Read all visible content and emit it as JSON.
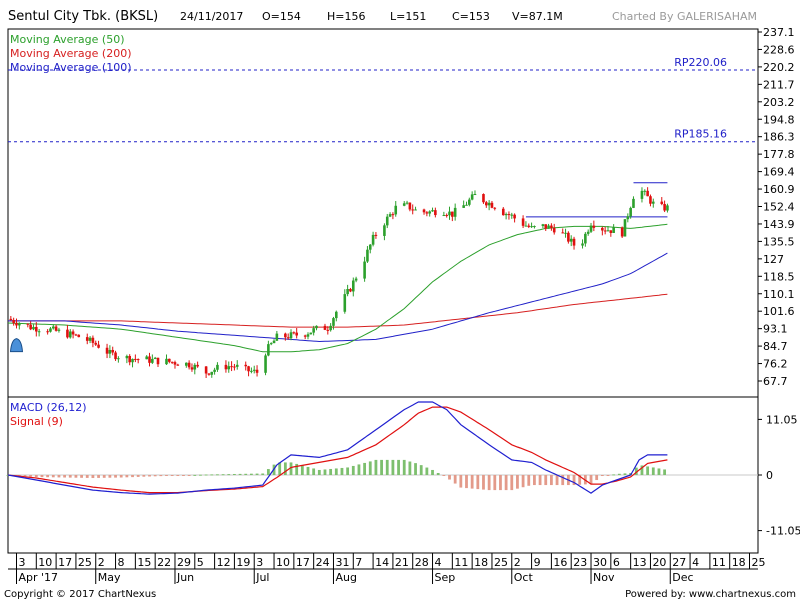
{
  "header": {
    "title": "Sentul City Tbk. (BKSL)",
    "date": "24/11/2017",
    "open": "O=154",
    "high": "H=156",
    "low": "L=151",
    "close": "C=153",
    "volume": "V=87.1M",
    "charted_by": "Charted By GALERISAHAM"
  },
  "footer": {
    "copyright": "Copyright © 2017 ChartNexus",
    "powered": "Powered by: www.chartnexus.com"
  },
  "colors": {
    "up": "#2ca02c",
    "down": "#e01010",
    "ma50": "#2ca02c",
    "ma200": "#d62020",
    "ma100": "#2020c8",
    "resistance": "#2020c8",
    "macd": "#1f1fd0",
    "signal": "#e01010"
  },
  "chart_data": [
    {
      "type": "candlestick",
      "legend": [
        {
          "name": "Moving Average (50)",
          "color": "#2ca02c"
        },
        {
          "name": "Moving Average (200)",
          "color": "#d62020"
        },
        {
          "name": "Moving Average (100)",
          "color": "#2020c8"
        }
      ],
      "y_ticks": [
        "237.1",
        "228.6",
        "220.2",
        "211.7",
        "203.2",
        "194.8",
        "186.3",
        "177.8",
        "169.4",
        "160.9",
        "152.4",
        "143.9",
        "135.5",
        "127",
        "118.5",
        "110.1",
        "101.6",
        "93.1",
        "84.7",
        "76.2",
        "67.7"
      ],
      "ylim": [
        61,
        240
      ],
      "x_ticks": [
        {
          "d": 3,
          "label": "3"
        },
        {
          "d": 10,
          "label": "10"
        },
        {
          "d": 17,
          "label": "17"
        },
        {
          "d": 24,
          "label": "25"
        },
        {
          "d": 31,
          "label": "2"
        },
        {
          "d": 38,
          "label": "8"
        },
        {
          "d": 45,
          "label": "15"
        },
        {
          "d": 52,
          "label": "22"
        },
        {
          "d": 59,
          "label": "29"
        },
        {
          "d": 66,
          "label": "5"
        },
        {
          "d": 73,
          "label": "12"
        },
        {
          "d": 80,
          "label": "19"
        },
        {
          "d": 87,
          "label": "3"
        },
        {
          "d": 94,
          "label": "10"
        },
        {
          "d": 101,
          "label": "17"
        },
        {
          "d": 108,
          "label": "24"
        },
        {
          "d": 115,
          "label": "31"
        },
        {
          "d": 122,
          "label": "7"
        },
        {
          "d": 129,
          "label": "14"
        },
        {
          "d": 136,
          "label": "21"
        },
        {
          "d": 143,
          "label": "28"
        },
        {
          "d": 150,
          "label": "4"
        },
        {
          "d": 157,
          "label": "11"
        },
        {
          "d": 164,
          "label": "18"
        },
        {
          "d": 171,
          "label": "25"
        },
        {
          "d": 178,
          "label": "2"
        },
        {
          "d": 185,
          "label": "9"
        },
        {
          "d": 192,
          "label": "16"
        },
        {
          "d": 199,
          "label": "23"
        },
        {
          "d": 206,
          "label": "30"
        },
        {
          "d": 213,
          "label": "6"
        },
        {
          "d": 220,
          "label": "13"
        },
        {
          "d": 227,
          "label": "20"
        },
        {
          "d": 234,
          "label": "27"
        },
        {
          "d": 241,
          "label": "4"
        },
        {
          "d": 248,
          "label": "11"
        },
        {
          "d": 255,
          "label": "18"
        },
        {
          "d": 262,
          "label": "25"
        }
      ],
      "x_months": [
        {
          "d": 3,
          "label": "Apr '17"
        },
        {
          "d": 31,
          "label": "May"
        },
        {
          "d": 59,
          "label": "Jun"
        },
        {
          "d": 87,
          "label": "Jul"
        },
        {
          "d": 115,
          "label": "Aug"
        },
        {
          "d": 150,
          "label": "Sep"
        },
        {
          "d": 178,
          "label": "Oct"
        },
        {
          "d": 206,
          "label": "Nov"
        },
        {
          "d": 234,
          "label": "Dec"
        }
      ],
      "x_domain": [
        0,
        265
      ],
      "candle_days": 233,
      "closes_anchor": [
        [
          0,
          99
        ],
        [
          4,
          97
        ],
        [
          8,
          95
        ],
        [
          14,
          94
        ],
        [
          20,
          92
        ],
        [
          26,
          90
        ],
        [
          32,
          86
        ],
        [
          36,
          82
        ],
        [
          42,
          80
        ],
        [
          50,
          79
        ],
        [
          58,
          78
        ],
        [
          64,
          77
        ],
        [
          70,
          73
        ],
        [
          76,
          76
        ],
        [
          80,
          76
        ],
        [
          84,
          74
        ],
        [
          88,
          73
        ],
        [
          91,
          83
        ],
        [
          95,
          90
        ],
        [
          101,
          91
        ],
        [
          105,
          92
        ],
        [
          109,
          94
        ],
        [
          113,
          95
        ],
        [
          117,
          105
        ],
        [
          121,
          114
        ],
        [
          125,
          125
        ],
        [
          129,
          138
        ],
        [
          133,
          146
        ],
        [
          137,
          153
        ],
        [
          141,
          154
        ],
        [
          145,
          151
        ],
        [
          149,
          151
        ],
        [
          153,
          152
        ],
        [
          157,
          150
        ],
        [
          161,
          154
        ],
        [
          165,
          159
        ],
        [
          169,
          156
        ],
        [
          172,
          154
        ],
        [
          175,
          151
        ],
        [
          178,
          149
        ],
        [
          181,
          146
        ],
        [
          185,
          143
        ],
        [
          189,
          144
        ],
        [
          193,
          143
        ],
        [
          197,
          139
        ],
        [
          200,
          135
        ],
        [
          203,
          137
        ],
        [
          206,
          146
        ],
        [
          210,
          143
        ],
        [
          214,
          142
        ],
        [
          217,
          141
        ],
        [
          219,
          150
        ],
        [
          221,
          159
        ],
        [
          224,
          161
        ],
        [
          228,
          155
        ],
        [
          231,
          153
        ],
        [
          233,
          153
        ]
      ],
      "ma50_anchor": [
        [
          0,
          97
        ],
        [
          20,
          96
        ],
        [
          40,
          94
        ],
        [
          60,
          90
        ],
        [
          80,
          86
        ],
        [
          90,
          83
        ],
        [
          100,
          83
        ],
        [
          110,
          84
        ],
        [
          120,
          87
        ],
        [
          130,
          94
        ],
        [
          140,
          104
        ],
        [
          150,
          117
        ],
        [
          160,
          127
        ],
        [
          170,
          135
        ],
        [
          180,
          140
        ],
        [
          190,
          143
        ],
        [
          200,
          144
        ],
        [
          210,
          144
        ],
        [
          220,
          143
        ],
        [
          233,
          145
        ]
      ],
      "ma100_anchor": [
        [
          0,
          98
        ],
        [
          20,
          98
        ],
        [
          40,
          96
        ],
        [
          60,
          93
        ],
        [
          80,
          91
        ],
        [
          90,
          90
        ],
        [
          110,
          88
        ],
        [
          130,
          89
        ],
        [
          150,
          94
        ],
        [
          170,
          102
        ],
        [
          190,
          109
        ],
        [
          210,
          116
        ],
        [
          220,
          121
        ],
        [
          233,
          131
        ]
      ],
      "ma200_anchor": [
        [
          0,
          98
        ],
        [
          40,
          98
        ],
        [
          80,
          96
        ],
        [
          100,
          95
        ],
        [
          120,
          95
        ],
        [
          140,
          96
        ],
        [
          160,
          99
        ],
        [
          180,
          102
        ],
        [
          200,
          106
        ],
        [
          220,
          109
        ],
        [
          233,
          111
        ]
      ],
      "resistance_lines": [
        {
          "label": "RP220.06",
          "value": 220.06
        },
        {
          "label": "RP185.16",
          "value": 185.16
        }
      ],
      "support_lines": [
        {
          "from": 221,
          "to": 233,
          "value": 165.2
        },
        {
          "from": 183,
          "to": 233,
          "value": 148.6
        }
      ],
      "marker": {
        "day": 3,
        "value": 86
      }
    },
    {
      "type": "macd",
      "legend": [
        {
          "name": "MACD (26,12)",
          "color": "#1f1fd0"
        },
        {
          "name": "Signal (9)",
          "color": "#e01010"
        }
      ],
      "y_ticks": [
        "11.05",
        "0",
        "-11.05"
      ],
      "ylim": [
        -15.5,
        15.5
      ],
      "macd_anchor": [
        [
          0,
          0
        ],
        [
          10,
          -1
        ],
        [
          20,
          -2
        ],
        [
          30,
          -3
        ],
        [
          40,
          -3.5
        ],
        [
          50,
          -3.8
        ],
        [
          60,
          -3.6
        ],
        [
          70,
          -3
        ],
        [
          80,
          -2.6
        ],
        [
          90,
          -2
        ],
        [
          95,
          2
        ],
        [
          100,
          4
        ],
        [
          110,
          3.5
        ],
        [
          120,
          5
        ],
        [
          130,
          9
        ],
        [
          140,
          13
        ],
        [
          145,
          14.5
        ],
        [
          150,
          14.5
        ],
        [
          155,
          13
        ],
        [
          160,
          10
        ],
        [
          170,
          6
        ],
        [
          178,
          3
        ],
        [
          185,
          2.5
        ],
        [
          190,
          1
        ],
        [
          200,
          -1.5
        ],
        [
          206,
          -3.6
        ],
        [
          210,
          -2
        ],
        [
          215,
          -1
        ],
        [
          220,
          0
        ],
        [
          223,
          3
        ],
        [
          226,
          4
        ],
        [
          233,
          4
        ]
      ],
      "signal_anchor": [
        [
          0,
          0
        ],
        [
          10,
          -0.6
        ],
        [
          20,
          -1.5
        ],
        [
          30,
          -2.4
        ],
        [
          40,
          -3
        ],
        [
          50,
          -3.5
        ],
        [
          60,
          -3.5
        ],
        [
          70,
          -3.1
        ],
        [
          80,
          -2.8
        ],
        [
          90,
          -2.3
        ],
        [
          95,
          -0.5
        ],
        [
          100,
          1.5
        ],
        [
          110,
          2.5
        ],
        [
          120,
          3.5
        ],
        [
          130,
          6
        ],
        [
          140,
          10
        ],
        [
          145,
          12.3
        ],
        [
          150,
          13.5
        ],
        [
          155,
          13.5
        ],
        [
          160,
          12.5
        ],
        [
          170,
          9
        ],
        [
          178,
          6
        ],
        [
          185,
          4.5
        ],
        [
          190,
          3
        ],
        [
          200,
          0.5
        ],
        [
          206,
          -1.8
        ],
        [
          210,
          -1.8
        ],
        [
          215,
          -1.2
        ],
        [
          220,
          -0.4
        ],
        [
          223,
          1
        ],
        [
          226,
          2.3
        ],
        [
          233,
          3
        ]
      ]
    }
  ]
}
